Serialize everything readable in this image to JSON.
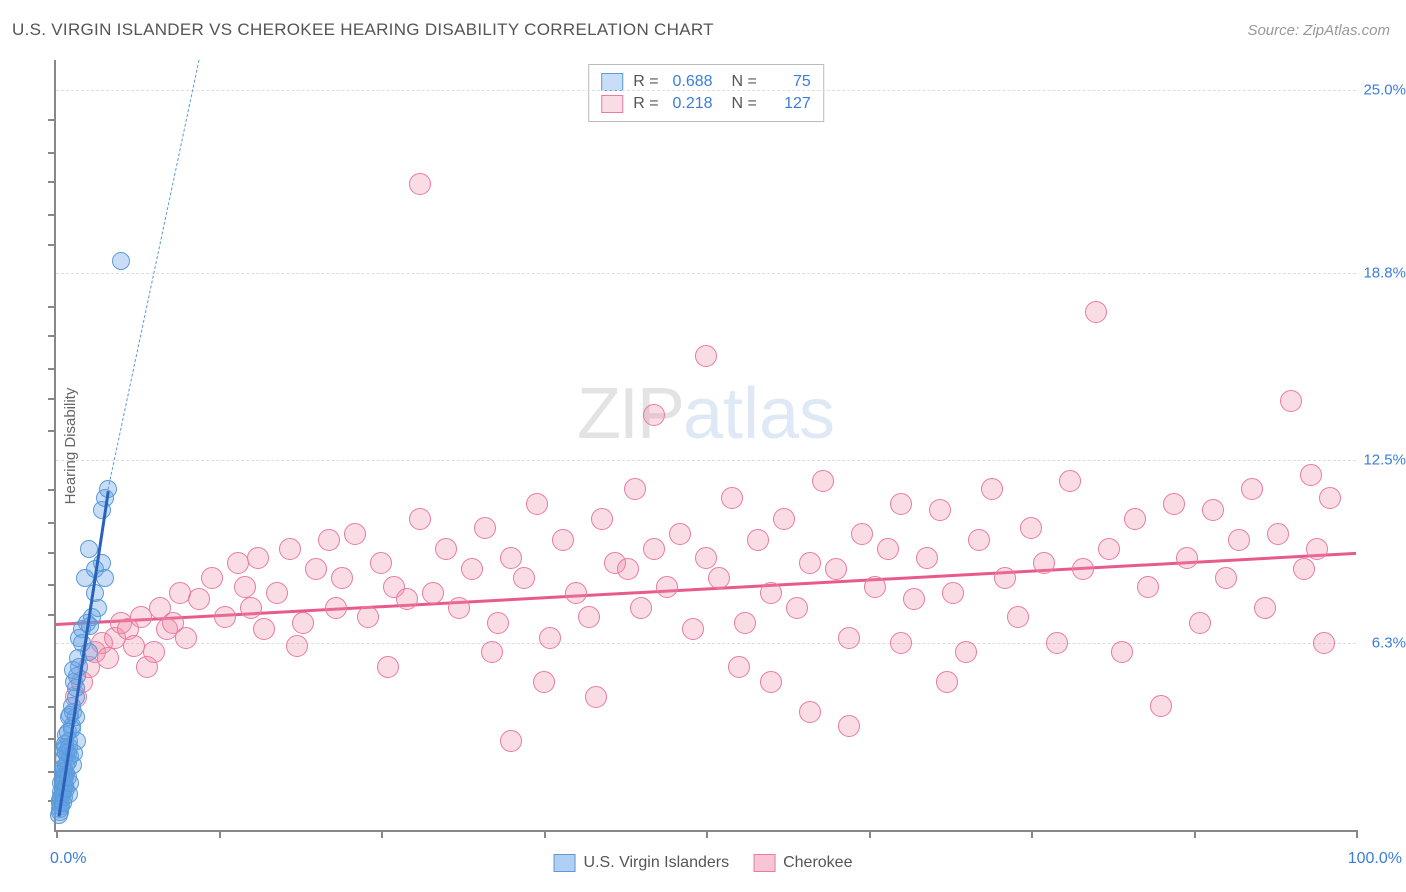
{
  "title": "U.S. VIRGIN ISLANDER VS CHEROKEE HEARING DISABILITY CORRELATION CHART",
  "source": "Source: ZipAtlas.com",
  "yaxis_title": "Hearing Disability",
  "watermark_part1": "ZIP",
  "watermark_part2": "atlas",
  "chart": {
    "type": "scatter",
    "background_color": "#ffffff",
    "grid_color": "#dddddd",
    "axis_color": "#888888",
    "xlim": [
      0,
      100
    ],
    "ylim": [
      0,
      26.0
    ],
    "xtick_positions": [
      0,
      12.5,
      25,
      37.5,
      50,
      62.5,
      75,
      87.5,
      100
    ],
    "xlabel_min": "0.0%",
    "xlabel_max": "100.0%",
    "yticks": [
      {
        "pos": 6.3,
        "label": "6.3%"
      },
      {
        "pos": 12.5,
        "label": "12.5%"
      },
      {
        "pos": 18.8,
        "label": "18.8%"
      },
      {
        "pos": 25.0,
        "label": "25.0%"
      }
    ],
    "ytick_minor": [
      1.0,
      2.0,
      3.1,
      4.2,
      5.2,
      7.3,
      8.3,
      9.4,
      10.4,
      11.5,
      13.5,
      14.6,
      15.6,
      16.7,
      17.7,
      19.8,
      20.8,
      21.9,
      22.9,
      24.0
    ],
    "label_color": "#3b7dd8",
    "label_fontsize": 15
  },
  "series": [
    {
      "name": "U.S. Virgin Islanders",
      "fill_color": "rgba(100,160,230,0.35)",
      "stroke_color": "#5a9bd8",
      "marker_radius": 9,
      "stroke_width": 1.5,
      "R": "0.688",
      "N": "75",
      "trend": {
        "x1": 0.2,
        "y1": 0.5,
        "x2": 4.0,
        "y2": 11.5,
        "color": "#2962b8",
        "width": 3,
        "dash": false
      },
      "trend_ext": {
        "x1": 4.0,
        "y1": 11.5,
        "x2": 11.0,
        "y2": 26.0,
        "color": "#5a9bd8",
        "width": 1,
        "dash": true
      },
      "points": [
        [
          0.3,
          0.6
        ],
        [
          0.4,
          0.8
        ],
        [
          0.3,
          1.0
        ],
        [
          0.5,
          1.2
        ],
        [
          0.6,
          1.4
        ],
        [
          0.4,
          1.6
        ],
        [
          0.7,
          1.8
        ],
        [
          0.5,
          2.0
        ],
        [
          0.8,
          2.2
        ],
        [
          0.6,
          2.4
        ],
        [
          0.9,
          2.6
        ],
        [
          0.7,
          2.8
        ],
        [
          1.0,
          3.0
        ],
        [
          0.8,
          3.2
        ],
        [
          0.5,
          2.1
        ],
        [
          0.4,
          1.3
        ],
        [
          0.3,
          0.9
        ],
        [
          0.6,
          1.1
        ],
        [
          0.7,
          1.5
        ],
        [
          0.5,
          1.7
        ],
        [
          0.8,
          1.9
        ],
        [
          0.9,
          2.3
        ],
        [
          1.1,
          2.5
        ],
        [
          0.6,
          2.7
        ],
        [
          0.7,
          2.9
        ],
        [
          1.2,
          3.5
        ],
        [
          1.0,
          3.8
        ],
        [
          1.3,
          4.0
        ],
        [
          1.5,
          4.5
        ],
        [
          1.4,
          5.0
        ],
        [
          1.8,
          5.5
        ],
        [
          1.1,
          3.9
        ],
        [
          0.9,
          3.3
        ],
        [
          0.8,
          2.6
        ],
        [
          1.0,
          2.8
        ],
        [
          0.7,
          2.0
        ],
        [
          0.6,
          1.8
        ],
        [
          0.5,
          1.4
        ],
        [
          0.4,
          1.1
        ],
        [
          0.3,
          0.7
        ],
        [
          0.2,
          0.5
        ],
        [
          0.5,
          0.9
        ],
        [
          0.6,
          1.6
        ],
        [
          1.2,
          4.2
        ],
        [
          1.6,
          5.2
        ],
        [
          2.5,
          6.0
        ],
        [
          2.0,
          6.8
        ],
        [
          2.8,
          7.2
        ],
        [
          3.2,
          7.5
        ],
        [
          2.2,
          8.5
        ],
        [
          3.5,
          9.0
        ],
        [
          3.0,
          8.8
        ],
        [
          1.8,
          6.5
        ],
        [
          2.4,
          7.0
        ],
        [
          1.5,
          4.8
        ],
        [
          1.3,
          5.4
        ],
        [
          1.7,
          5.8
        ],
        [
          2.0,
          6.3
        ],
        [
          2.6,
          6.9
        ],
        [
          3.0,
          8.0
        ],
        [
          3.8,
          8.5
        ],
        [
          2.5,
          9.5
        ],
        [
          3.5,
          10.8
        ],
        [
          3.8,
          11.2
        ],
        [
          4.0,
          11.5
        ],
        [
          5.0,
          19.2
        ],
        [
          1.0,
          1.2
        ],
        [
          0.8,
          1.4
        ],
        [
          1.1,
          1.6
        ],
        [
          0.9,
          1.8
        ],
        [
          1.3,
          2.2
        ],
        [
          1.4,
          2.6
        ],
        [
          1.6,
          3.0
        ],
        [
          1.2,
          3.4
        ],
        [
          1.5,
          3.8
        ]
      ]
    },
    {
      "name": "Cherokee",
      "fill_color": "rgba(240,140,170,0.30)",
      "stroke_color": "#e87ba3",
      "marker_radius": 11,
      "stroke_width": 1.5,
      "R": "0.218",
      "N": "127",
      "trend": {
        "x1": 0,
        "y1": 7.0,
        "x2": 100,
        "y2": 9.4,
        "color": "#e85a8c",
        "width": 3,
        "dash": false
      },
      "points": [
        [
          1.5,
          4.5
        ],
        [
          2.0,
          5.0
        ],
        [
          2.5,
          5.5
        ],
        [
          3.0,
          6.0
        ],
        [
          3.5,
          6.3
        ],
        [
          4.0,
          5.8
        ],
        [
          4.5,
          6.5
        ],
        [
          5.0,
          7.0
        ],
        [
          5.5,
          6.8
        ],
        [
          6.0,
          6.2
        ],
        [
          6.5,
          7.2
        ],
        [
          7.0,
          5.5
        ],
        [
          7.5,
          6.0
        ],
        [
          8.0,
          7.5
        ],
        [
          8.5,
          6.8
        ],
        [
          9.0,
          7.0
        ],
        [
          9.5,
          8.0
        ],
        [
          10.0,
          6.5
        ],
        [
          11.0,
          7.8
        ],
        [
          12.0,
          8.5
        ],
        [
          13.0,
          7.2
        ],
        [
          14.0,
          9.0
        ],
        [
          14.5,
          8.2
        ],
        [
          15.0,
          7.5
        ],
        [
          15.5,
          9.2
        ],
        [
          16.0,
          6.8
        ],
        [
          17.0,
          8.0
        ],
        [
          18.0,
          9.5
        ],
        [
          19.0,
          7.0
        ],
        [
          20.0,
          8.8
        ],
        [
          21.0,
          9.8
        ],
        [
          21.5,
          7.5
        ],
        [
          22.0,
          8.5
        ],
        [
          23.0,
          10.0
        ],
        [
          24.0,
          7.2
        ],
        [
          25.0,
          9.0
        ],
        [
          26.0,
          8.2
        ],
        [
          27.0,
          7.8
        ],
        [
          28.0,
          10.5
        ],
        [
          28.0,
          21.8
        ],
        [
          29.0,
          8.0
        ],
        [
          30.0,
          9.5
        ],
        [
          31.0,
          7.5
        ],
        [
          32.0,
          8.8
        ],
        [
          33.0,
          10.2
        ],
        [
          34.0,
          7.0
        ],
        [
          35.0,
          9.2
        ],
        [
          35.0,
          3.0
        ],
        [
          36.0,
          8.5
        ],
        [
          37.0,
          11.0
        ],
        [
          38.0,
          6.5
        ],
        [
          39.0,
          9.8
        ],
        [
          40.0,
          8.0
        ],
        [
          41.0,
          7.2
        ],
        [
          42.0,
          10.5
        ],
        [
          43.0,
          9.0
        ],
        [
          44.0,
          8.8
        ],
        [
          44.5,
          11.5
        ],
        [
          45.0,
          7.5
        ],
        [
          46.0,
          9.5
        ],
        [
          46.0,
          14.0
        ],
        [
          47.0,
          8.2
        ],
        [
          48.0,
          10.0
        ],
        [
          49.0,
          6.8
        ],
        [
          50.0,
          9.2
        ],
        [
          50.0,
          16.0
        ],
        [
          51.0,
          8.5
        ],
        [
          52.0,
          11.2
        ],
        [
          53.0,
          7.0
        ],
        [
          54.0,
          9.8
        ],
        [
          55.0,
          8.0
        ],
        [
          55.0,
          5.0
        ],
        [
          56.0,
          10.5
        ],
        [
          57.0,
          7.5
        ],
        [
          58.0,
          9.0
        ],
        [
          58.0,
          4.0
        ],
        [
          59.0,
          11.8
        ],
        [
          60.0,
          8.8
        ],
        [
          61.0,
          6.5
        ],
        [
          61.0,
          3.5
        ],
        [
          62.0,
          10.0
        ],
        [
          63.0,
          8.2
        ],
        [
          64.0,
          9.5
        ],
        [
          65.0,
          11.0
        ],
        [
          65.0,
          6.3
        ],
        [
          66.0,
          7.8
        ],
        [
          67.0,
          9.2
        ],
        [
          68.0,
          10.8
        ],
        [
          69.0,
          8.0
        ],
        [
          70.0,
          6.0
        ],
        [
          71.0,
          9.8
        ],
        [
          72.0,
          11.5
        ],
        [
          73.0,
          8.5
        ],
        [
          74.0,
          7.2
        ],
        [
          75.0,
          10.2
        ],
        [
          76.0,
          9.0
        ],
        [
          77.0,
          6.3
        ],
        [
          78.0,
          11.8
        ],
        [
          79.0,
          8.8
        ],
        [
          80.0,
          17.5
        ],
        [
          81.0,
          9.5
        ],
        [
          82.0,
          6.0
        ],
        [
          83.0,
          10.5
        ],
        [
          84.0,
          8.2
        ],
        [
          85.0,
          4.2
        ],
        [
          86.0,
          11.0
        ],
        [
          87.0,
          9.2
        ],
        [
          88.0,
          7.0
        ],
        [
          89.0,
          10.8
        ],
        [
          90.0,
          8.5
        ],
        [
          91.0,
          9.8
        ],
        [
          92.0,
          11.5
        ],
        [
          93.0,
          7.5
        ],
        [
          94.0,
          10.0
        ],
        [
          95.0,
          14.5
        ],
        [
          96.0,
          8.8
        ],
        [
          96.5,
          12.0
        ],
        [
          97.0,
          9.5
        ],
        [
          97.5,
          6.3
        ],
        [
          98.0,
          11.2
        ],
        [
          33.5,
          6.0
        ],
        [
          37.5,
          5.0
        ],
        [
          41.5,
          4.5
        ],
        [
          52.5,
          5.5
        ],
        [
          68.5,
          5.0
        ],
        [
          25.5,
          5.5
        ],
        [
          18.5,
          6.2
        ]
      ]
    }
  ],
  "bottom_legend": {
    "items": [
      {
        "label": "U.S. Virgin Islanders",
        "fill": "rgba(100,160,230,0.5)",
        "stroke": "#5a9bd8"
      },
      {
        "label": "Cherokee",
        "fill": "rgba(240,140,170,0.5)",
        "stroke": "#e87ba3"
      }
    ]
  }
}
